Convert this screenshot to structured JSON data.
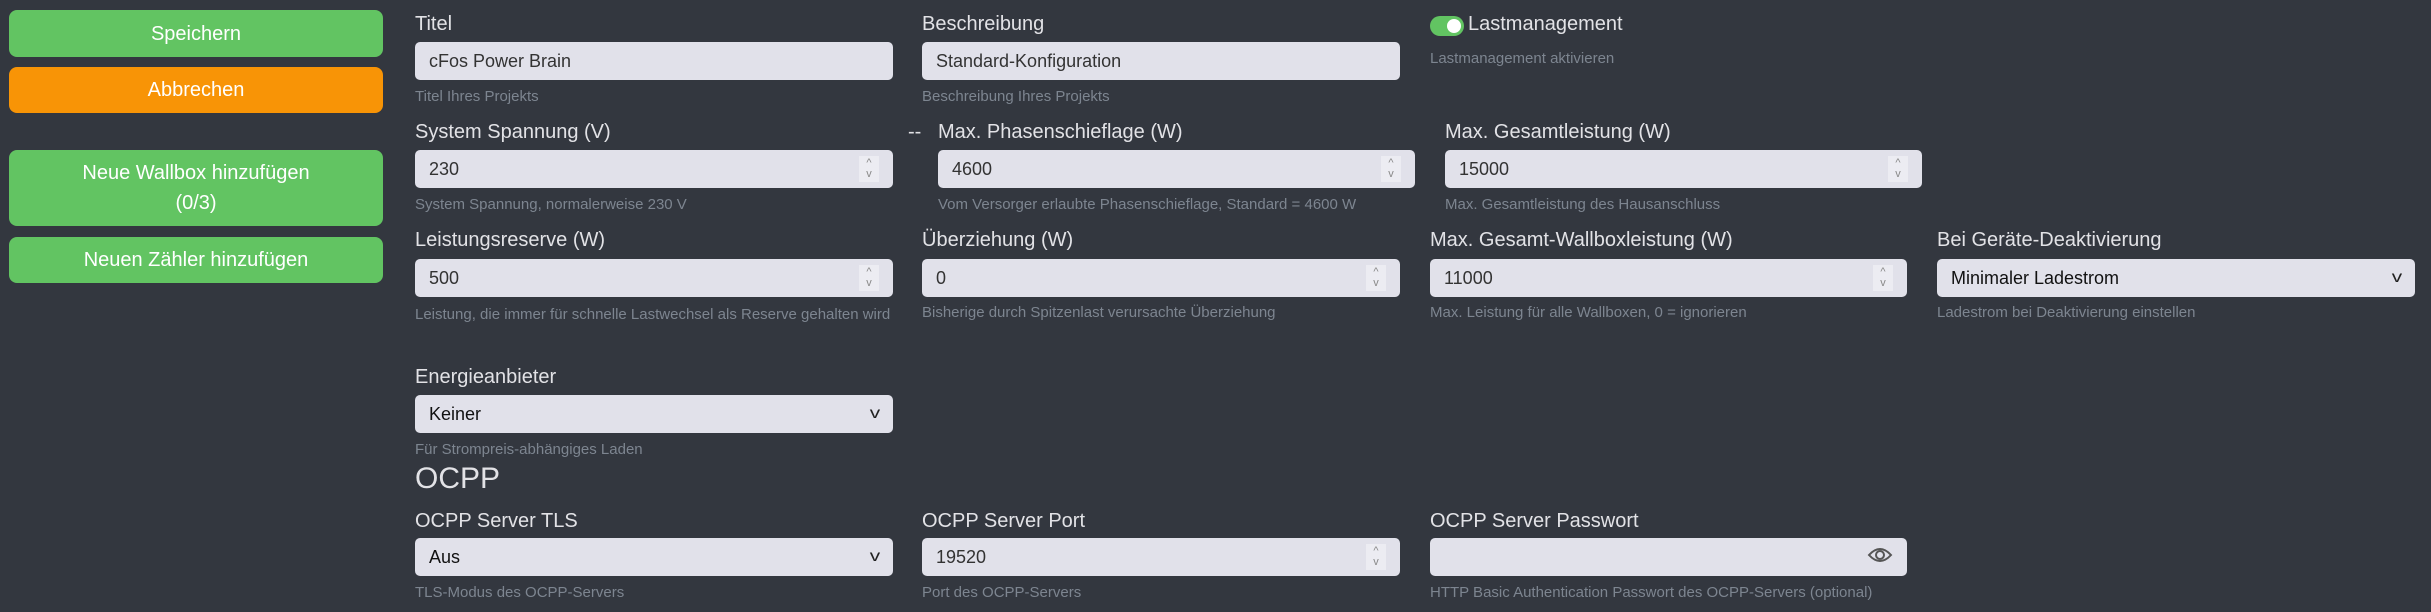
{
  "sidebar": {
    "save": "Speichern",
    "cancel": "Abbrechen",
    "add_wallbox": "Neue Wallbox hinzufügen",
    "add_wallbox_count": "(0/3)",
    "add_meter": "Neuen Zähler hinzufügen"
  },
  "colors": {
    "background": "#33373f",
    "green": "#62c462",
    "orange": "#f89406"
  },
  "form": {
    "title": {
      "label": "Titel",
      "value": "cFos Power Brain",
      "help": "Titel Ihres Projekts"
    },
    "description": {
      "label": "Beschreibung",
      "value": "Standard-Konfiguration",
      "help": "Beschreibung Ihres Projekts"
    },
    "load_mgmt": {
      "label": "Lastmanagement",
      "enabled": true,
      "help": "Lastmanagement aktivieren"
    },
    "voltage": {
      "label": "System Spannung (V)",
      "value": "230",
      "help": "System Spannung, normalerweise 230 V"
    },
    "separator": "--",
    "phase_imbalance": {
      "label": "Max. Phasenschieflage (W)",
      "value": "4600",
      "help": "Vom Versorger erlaubte Phasenschieflage, Standard = 4600 W"
    },
    "max_total": {
      "label": "Max. Gesamtleistung (W)",
      "value": "15000",
      "help": "Max. Gesamtleistung des Hausanschluss"
    },
    "reserve": {
      "label": "Leistungsreserve (W)",
      "value": "500",
      "help": "Leistung, die immer für schnelle Lastwechsel als Reserve gehalten wird"
    },
    "overdraw": {
      "label": "Überziehung (W)",
      "value": "0",
      "help": "Bisherige durch Spitzenlast verursachte Überziehung"
    },
    "max_wallbox": {
      "label": "Max. Gesamt-Wallboxleistung (W)",
      "value": "11000",
      "help": "Max. Leistung für alle Wallboxen, 0 = ignorieren"
    },
    "deactivation": {
      "label": "Bei Geräte-Deaktivierung",
      "value": "Minimaler Ladestrom",
      "help": "Ladestrom bei Deaktivierung einstellen"
    },
    "energy_provider": {
      "label": "Energieanbieter",
      "value": "Keiner",
      "help": "Für Strompreis-abhängiges Laden"
    }
  },
  "ocpp": {
    "heading": "OCPP",
    "tls": {
      "label": "OCPP Server TLS",
      "value": "Aus",
      "help": "TLS-Modus des OCPP-Servers"
    },
    "port": {
      "label": "OCPP Server Port",
      "value": "19520",
      "help": "Port des OCPP-Servers"
    },
    "password": {
      "label": "OCPP Server Passwort",
      "value": "",
      "help": "HTTP Basic Authentication Passwort des OCPP-Servers (optional)",
      "icon": "eye-icon"
    }
  }
}
